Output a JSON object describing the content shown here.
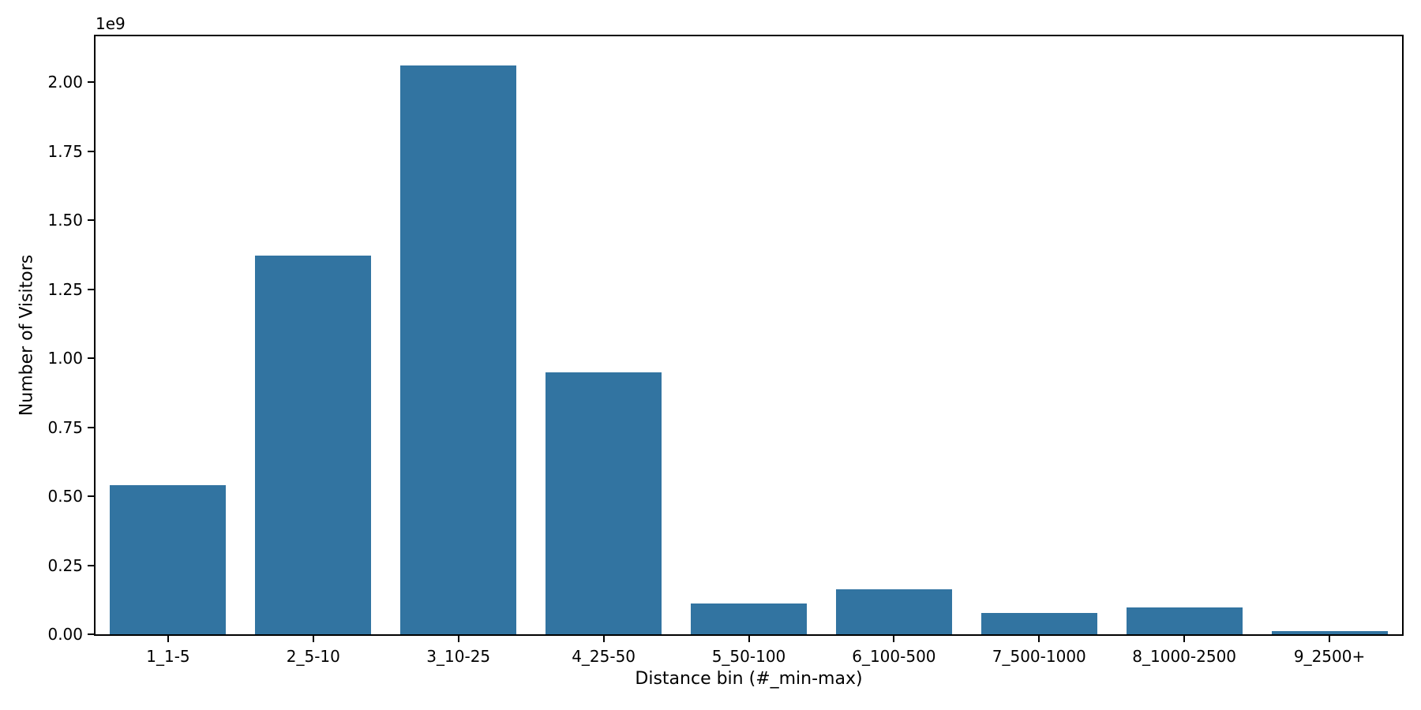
{
  "chart_data": {
    "type": "bar",
    "title": "",
    "xlabel": "Distance bin (#_min-max)",
    "ylabel": "Number of Visitors",
    "offset_text": "1e9",
    "categories": [
      "1_1-5",
      "2_5-10",
      "3_10-25",
      "4_25-50",
      "5_50-100",
      "6_100-500",
      "7_500-1000",
      "8_1000-2500",
      "9_2500+"
    ],
    "values": [
      540000000,
      1371000000,
      2062000000,
      950000000,
      111000000,
      162000000,
      77000000,
      97000000,
      11000000
    ],
    "ylim": [
      0,
      2167000000
    ],
    "yticks": [
      0,
      250000000,
      500000000,
      750000000,
      1000000000,
      1250000000,
      1500000000,
      1750000000,
      2000000000
    ],
    "ytick_labels": [
      "0.00",
      "0.25",
      "0.50",
      "0.75",
      "1.00",
      "1.25",
      "1.50",
      "1.75",
      "2.00"
    ],
    "bar_color": "#3274a1",
    "bar_width_fraction": 0.8,
    "grid": false,
    "legend": null,
    "background_color": "#ffffff",
    "spine_color": "#000000"
  }
}
